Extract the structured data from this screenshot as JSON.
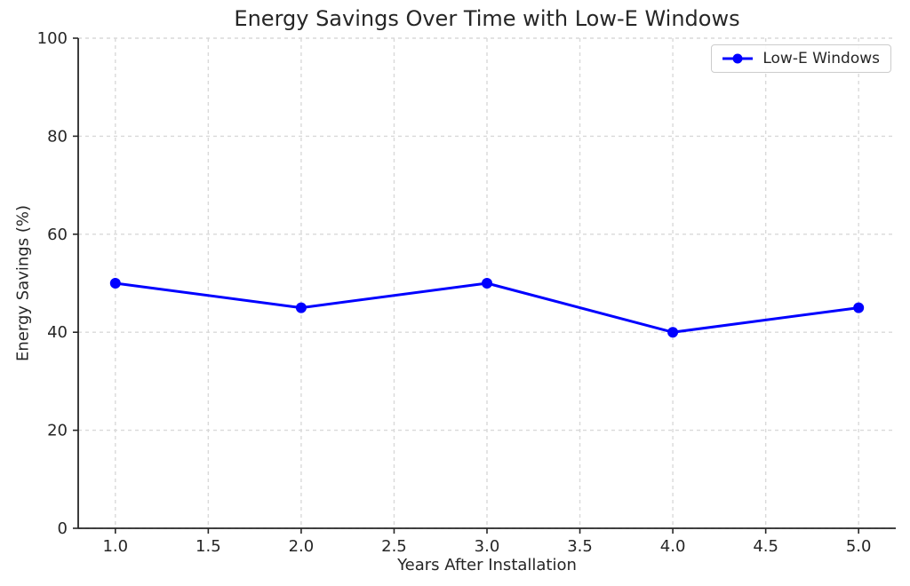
{
  "chart_data": {
    "type": "line",
    "title": "Energy Savings Over Time with Low-E Windows",
    "xlabel": "Years After Installation",
    "ylabel": "Energy Savings (%)",
    "x": [
      1.0,
      2.0,
      3.0,
      4.0,
      5.0
    ],
    "series": [
      {
        "name": "Low-E Windows",
        "values": [
          50,
          45,
          50,
          40,
          45
        ],
        "color": "#0000ff"
      }
    ],
    "xlim": [
      0.8,
      5.2
    ],
    "ylim": [
      0,
      100
    ],
    "xticks": [
      "1.0",
      "1.5",
      "2.0",
      "2.5",
      "3.0",
      "3.5",
      "4.0",
      "4.5",
      "5.0"
    ],
    "yticks": [
      "0",
      "20",
      "40",
      "60",
      "80",
      "100"
    ],
    "grid": true,
    "legend_position": "upper right",
    "colors": {
      "line": "#0000ff",
      "grid": "#d9d9d9",
      "axis": "#262626",
      "text": "#262626",
      "legend_border": "#cccccc",
      "background": "#ffffff"
    }
  }
}
